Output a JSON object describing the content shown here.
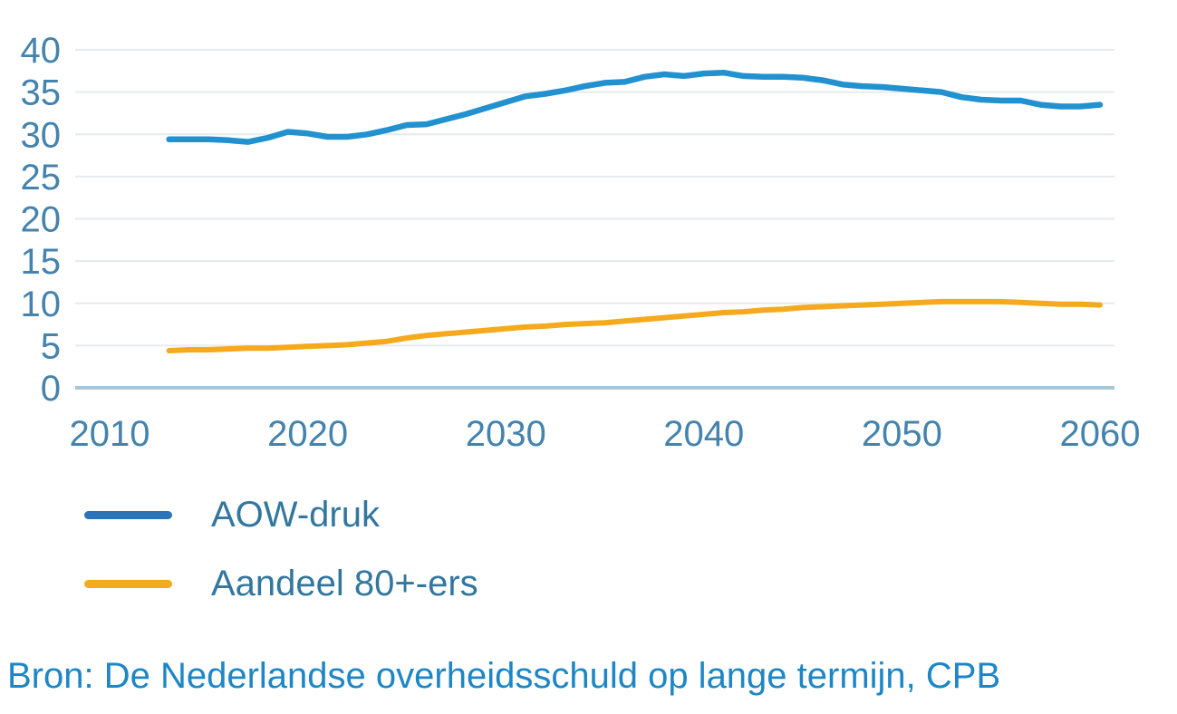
{
  "colors": {
    "aow_line": "#2191d0",
    "aow_legend": "#2b74ba",
    "share80_line": "#f5a91c",
    "share80_legend": "#f2ab1f",
    "grid": "#e7eaec",
    "zero_axis": "#a6c6da",
    "axis_label": "#4383ad",
    "legend_text": "#33779f",
    "source_text": "#1d86c6"
  },
  "chart_data": {
    "type": "line",
    "title": "",
    "xlabel": "",
    "ylabel": "",
    "x_ticks": [
      2010,
      2020,
      2030,
      2040,
      2050,
      2060
    ],
    "y_ticks": [
      0,
      5,
      10,
      15,
      20,
      25,
      30,
      35,
      40
    ],
    "xlim": [
      2010,
      2060.5
    ],
    "ylim": [
      0,
      40
    ],
    "grid": "horizontal-only",
    "legend_position": "below-chart-left",
    "source": "Bron: De Nederlandse overheidsschuld op lange termijn, CPB",
    "x": [
      2013,
      2014,
      2015,
      2016,
      2017,
      2018,
      2019,
      2020,
      2021,
      2022,
      2023,
      2024,
      2025,
      2026,
      2027,
      2028,
      2029,
      2030,
      2031,
      2032,
      2033,
      2034,
      2035,
      2036,
      2037,
      2038,
      2039,
      2040,
      2041,
      2042,
      2043,
      2044,
      2045,
      2046,
      2047,
      2048,
      2049,
      2050,
      2051,
      2052,
      2053,
      2054,
      2055,
      2056,
      2057,
      2058,
      2059,
      2060
    ],
    "series": [
      {
        "name": "AOW-druk",
        "color_key": "aow_line",
        "legend_color_key": "aow_legend",
        "values": [
          29.4,
          29.4,
          29.4,
          29.3,
          29.1,
          29.6,
          30.3,
          30.1,
          29.7,
          29.7,
          30.0,
          30.5,
          31.1,
          31.2,
          31.8,
          32.4,
          33.1,
          33.8,
          34.5,
          34.8,
          35.2,
          35.7,
          36.1,
          36.2,
          36.8,
          37.1,
          36.9,
          37.2,
          37.3,
          36.9,
          36.8,
          36.8,
          36.7,
          36.4,
          35.9,
          35.7,
          35.6,
          35.4,
          35.2,
          35.0,
          34.4,
          34.1,
          34.0,
          34.0,
          33.5,
          33.3,
          33.3,
          33.5
        ]
      },
      {
        "name": "Aandeel 80+-ers",
        "color_key": "share80_line",
        "legend_color_key": "share80_legend",
        "values": [
          4.4,
          4.5,
          4.5,
          4.6,
          4.7,
          4.7,
          4.8,
          4.9,
          5.0,
          5.1,
          5.3,
          5.5,
          5.9,
          6.2,
          6.4,
          6.6,
          6.8,
          7.0,
          7.2,
          7.3,
          7.5,
          7.6,
          7.7,
          7.9,
          8.1,
          8.3,
          8.5,
          8.7,
          8.9,
          9.0,
          9.2,
          9.3,
          9.5,
          9.6,
          9.7,
          9.8,
          9.9,
          10.0,
          10.1,
          10.2,
          10.2,
          10.2,
          10.2,
          10.1,
          10.0,
          9.9,
          9.9,
          9.8
        ]
      }
    ]
  }
}
